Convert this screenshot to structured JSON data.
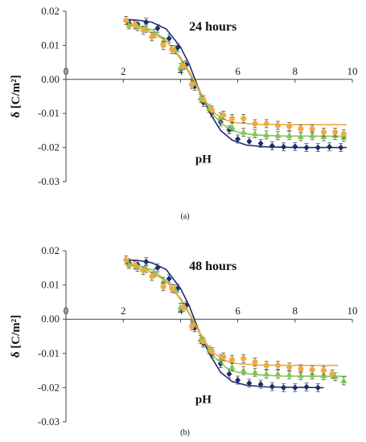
{
  "chart_data": [
    {
      "type": "scatter",
      "caption": "(a)",
      "annotation": "24 hours",
      "xlabel": "pH",
      "ylabel": "δ  [C/m²]",
      "xlim": [
        0,
        10
      ],
      "ylim": [
        -0.03,
        0.02
      ],
      "x_ticks": [
        "0",
        "2",
        "4",
        "6",
        "8",
        "10"
      ],
      "y_ticks": [
        "0.02",
        "0.01",
        "0.00",
        "-0.01",
        "-0.02",
        "-0.03"
      ],
      "grid": false,
      "series": [
        {
          "color": "#1f2d6e",
          "marker": "diamond",
          "points": [
            [
              2.2,
              0.0165
            ],
            [
              2.5,
              0.0162
            ],
            [
              2.8,
              0.0168
            ],
            [
              3.2,
              0.015
            ],
            [
              3.6,
              0.012
            ],
            [
              3.9,
              0.0093
            ],
            [
              4.2,
              0.0043
            ],
            [
              4.5,
              -0.002
            ],
            [
              4.8,
              -0.0068
            ],
            [
              5.1,
              -0.0098
            ],
            [
              5.4,
              -0.0125
            ],
            [
              5.7,
              -0.0148
            ],
            [
              6.0,
              -0.0175
            ],
            [
              6.4,
              -0.0182
            ],
            [
              6.8,
              -0.0188
            ],
            [
              7.2,
              -0.0195
            ],
            [
              7.6,
              -0.0198
            ],
            [
              8.0,
              -0.0197
            ],
            [
              8.4,
              -0.02
            ],
            [
              8.8,
              -0.02
            ],
            [
              9.2,
              -0.0198
            ],
            [
              9.6,
              -0.02
            ]
          ],
          "fit": [
            [
              2.1,
              0.0175
            ],
            [
              2.5,
              0.0174
            ],
            [
              3.0,
              0.0168
            ],
            [
              3.5,
              0.0148
            ],
            [
              4.0,
              0.0095
            ],
            [
              4.3,
              0.0045
            ],
            [
              4.6,
              -0.002
            ],
            [
              5.0,
              -0.0095
            ],
            [
              5.4,
              -0.015
            ],
            [
              5.8,
              -0.0178
            ],
            [
              6.3,
              -0.0193
            ],
            [
              7.0,
              -0.0198
            ],
            [
              8.0,
              -0.02
            ],
            [
              9.8,
              -0.02
            ]
          ]
        },
        {
          "color": "#7ec850",
          "marker": "triangle",
          "points": [
            [
              2.2,
              0.016
            ],
            [
              2.5,
              0.0155
            ],
            [
              2.8,
              0.015
            ],
            [
              3.1,
              0.0135
            ],
            [
              3.4,
              0.011
            ],
            [
              3.8,
              0.0087
            ],
            [
              4.0,
              0.0035
            ],
            [
              4.4,
              -0.001
            ],
            [
              4.7,
              -0.0055
            ],
            [
              5.0,
              -0.0085
            ],
            [
              5.4,
              -0.011
            ],
            [
              5.8,
              -0.014
            ],
            [
              6.2,
              -0.0155
            ],
            [
              6.6,
              -0.016
            ],
            [
              7.0,
              -0.0163
            ],
            [
              7.4,
              -0.0165
            ],
            [
              7.8,
              -0.0165
            ],
            [
              8.2,
              -0.0168
            ],
            [
              8.6,
              -0.0165
            ],
            [
              9.0,
              -0.0168
            ],
            [
              9.4,
              -0.0165
            ],
            [
              9.7,
              -0.017
            ]
          ],
          "fit": [
            [
              2.1,
              0.0162
            ],
            [
              2.5,
              0.0158
            ],
            [
              3.0,
              0.0145
            ],
            [
              3.5,
              0.0115
            ],
            [
              4.0,
              0.006
            ],
            [
              4.4,
              0.0005
            ],
            [
              4.8,
              -0.006
            ],
            [
              5.2,
              -0.011
            ],
            [
              5.6,
              -0.014
            ],
            [
              6.0,
              -0.0155
            ],
            [
              6.6,
              -0.0163
            ],
            [
              7.5,
              -0.0166
            ],
            [
              9.8,
              -0.0167
            ]
          ]
        },
        {
          "color": "#f2a93b",
          "marker": "circle",
          "points": [
            [
              2.1,
              0.0173
            ],
            [
              2.4,
              0.016
            ],
            [
              2.7,
              0.0145
            ],
            [
              3.0,
              0.0125
            ],
            [
              3.4,
              0.01
            ],
            [
              3.7,
              0.0088
            ],
            [
              4.1,
              0.004
            ],
            [
              4.4,
              -0.0015
            ],
            [
              4.8,
              -0.006
            ],
            [
              5.1,
              -0.009
            ],
            [
              5.5,
              -0.0105
            ],
            [
              5.8,
              -0.0115
            ],
            [
              6.2,
              -0.0115
            ],
            [
              6.6,
              -0.013
            ],
            [
              7.0,
              -0.013
            ],
            [
              7.4,
              -0.0135
            ],
            [
              7.8,
              -0.0138
            ],
            [
              8.2,
              -0.0145
            ],
            [
              8.6,
              -0.0145
            ],
            [
              9.0,
              -0.0155
            ],
            [
              9.4,
              -0.0155
            ],
            [
              9.7,
              -0.016
            ]
          ],
          "fit": [
            [
              2.1,
              0.016
            ],
            [
              2.5,
              0.0153
            ],
            [
              3.0,
              0.0138
            ],
            [
              3.5,
              0.0112
            ],
            [
              4.0,
              0.0065
            ],
            [
              4.4,
              0.001
            ],
            [
              4.8,
              -0.0055
            ],
            [
              5.2,
              -0.01
            ],
            [
              5.6,
              -0.012
            ],
            [
              6.0,
              -0.0128
            ],
            [
              6.8,
              -0.0132
            ],
            [
              8.0,
              -0.0133
            ],
            [
              9.8,
              -0.0133
            ]
          ]
        }
      ]
    },
    {
      "type": "scatter",
      "caption": "(b)",
      "annotation": "48 hours",
      "xlabel": "pH",
      "ylabel": "δ  [C/m²]",
      "xlim": [
        0,
        10
      ],
      "ylim": [
        -0.03,
        0.02
      ],
      "x_ticks": [
        "0",
        "2",
        "4",
        "6",
        "8",
        "10"
      ],
      "y_ticks": [
        "0.02",
        "0.01",
        "0.00",
        "-0.01",
        "-0.02",
        "-0.03"
      ],
      "grid": false,
      "series": [
        {
          "color": "#1f2d6e",
          "marker": "diamond",
          "points": [
            [
              2.2,
              0.0165
            ],
            [
              2.5,
              0.016
            ],
            [
              2.8,
              0.0168
            ],
            [
              3.2,
              0.015
            ],
            [
              3.6,
              0.0118
            ],
            [
              3.9,
              0.009
            ],
            [
              4.2,
              0.004
            ],
            [
              4.5,
              -0.0025
            ],
            [
              4.8,
              -0.007
            ],
            [
              5.1,
              -0.01
            ],
            [
              5.4,
              -0.013
            ],
            [
              5.7,
              -0.016
            ],
            [
              6.0,
              -0.0178
            ],
            [
              6.4,
              -0.0187
            ],
            [
              6.8,
              -0.019
            ],
            [
              7.2,
              -0.0197
            ],
            [
              7.6,
              -0.02
            ],
            [
              8.0,
              -0.02
            ],
            [
              8.4,
              -0.0198
            ],
            [
              8.8,
              -0.02
            ]
          ],
          "fit": [
            [
              2.1,
              0.0173
            ],
            [
              2.5,
              0.0172
            ],
            [
              3.0,
              0.0165
            ],
            [
              3.5,
              0.0145
            ],
            [
              4.0,
              0.009
            ],
            [
              4.3,
              0.004
            ],
            [
              4.6,
              -0.0025
            ],
            [
              5.0,
              -0.01
            ],
            [
              5.4,
              -0.0155
            ],
            [
              5.8,
              -0.0182
            ],
            [
              6.3,
              -0.0193
            ],
            [
              7.0,
              -0.0198
            ],
            [
              9.0,
              -0.02
            ]
          ]
        },
        {
          "color": "#7ec850",
          "marker": "triangle",
          "points": [
            [
              2.2,
              0.016
            ],
            [
              2.5,
              0.0152
            ],
            [
              2.8,
              0.0148
            ],
            [
              3.1,
              0.0135
            ],
            [
              3.4,
              0.011
            ],
            [
              3.8,
              0.0088
            ],
            [
              4.0,
              0.0035
            ],
            [
              4.4,
              -0.0015
            ],
            [
              4.7,
              -0.006
            ],
            [
              5.0,
              -0.009
            ],
            [
              5.4,
              -0.0115
            ],
            [
              5.8,
              -0.014
            ],
            [
              6.2,
              -0.015
            ],
            [
              6.6,
              -0.0155
            ],
            [
              7.0,
              -0.016
            ],
            [
              7.4,
              -0.016
            ],
            [
              7.8,
              -0.0162
            ],
            [
              8.2,
              -0.0165
            ],
            [
              8.6,
              -0.0163
            ],
            [
              9.0,
              -0.0165
            ],
            [
              9.4,
              -0.0168
            ],
            [
              9.7,
              -0.018
            ]
          ],
          "fit": [
            [
              2.1,
              0.0163
            ],
            [
              2.5,
              0.0158
            ],
            [
              3.0,
              0.0144
            ],
            [
              3.5,
              0.0113
            ],
            [
              4.0,
              0.0058
            ],
            [
              4.4,
              0.0002
            ],
            [
              4.8,
              -0.0063
            ],
            [
              5.2,
              -0.0112
            ],
            [
              5.6,
              -0.0142
            ],
            [
              6.0,
              -0.0155
            ],
            [
              6.6,
              -0.0162
            ],
            [
              7.5,
              -0.0166
            ],
            [
              9.8,
              -0.0167
            ]
          ]
        },
        {
          "color": "#f2a93b",
          "marker": "circle",
          "points": [
            [
              2.1,
              0.0173
            ],
            [
              2.4,
              0.0158
            ],
            [
              2.7,
              0.0142
            ],
            [
              3.0,
              0.0125
            ],
            [
              3.4,
              0.0095
            ],
            [
              3.7,
              0.009
            ],
            [
              4.1,
              0.0035
            ],
            [
              4.4,
              -0.002
            ],
            [
              4.8,
              -0.0065
            ],
            [
              5.1,
              -0.0095
            ],
            [
              5.5,
              -0.011
            ],
            [
              5.8,
              -0.0118
            ],
            [
              6.2,
              -0.0115
            ],
            [
              6.6,
              -0.0125
            ],
            [
              7.0,
              -0.0135
            ],
            [
              7.4,
              -0.0135
            ],
            [
              7.8,
              -0.014
            ],
            [
              8.2,
              -0.0145
            ],
            [
              8.6,
              -0.0148
            ],
            [
              9.0,
              -0.015
            ],
            [
              9.3,
              -0.016
            ]
          ],
          "fit": [
            [
              2.1,
              0.016
            ],
            [
              2.5,
              0.0152
            ],
            [
              3.0,
              0.0137
            ],
            [
              3.5,
              0.011
            ],
            [
              4.0,
              0.0062
            ],
            [
              4.4,
              0.0005
            ],
            [
              4.8,
              -0.006
            ],
            [
              5.2,
              -0.0102
            ],
            [
              5.6,
              -0.0122
            ],
            [
              6.0,
              -0.013
            ],
            [
              6.8,
              -0.0134
            ],
            [
              8.0,
              -0.0135
            ],
            [
              9.5,
              -0.0135
            ]
          ]
        }
      ]
    }
  ]
}
